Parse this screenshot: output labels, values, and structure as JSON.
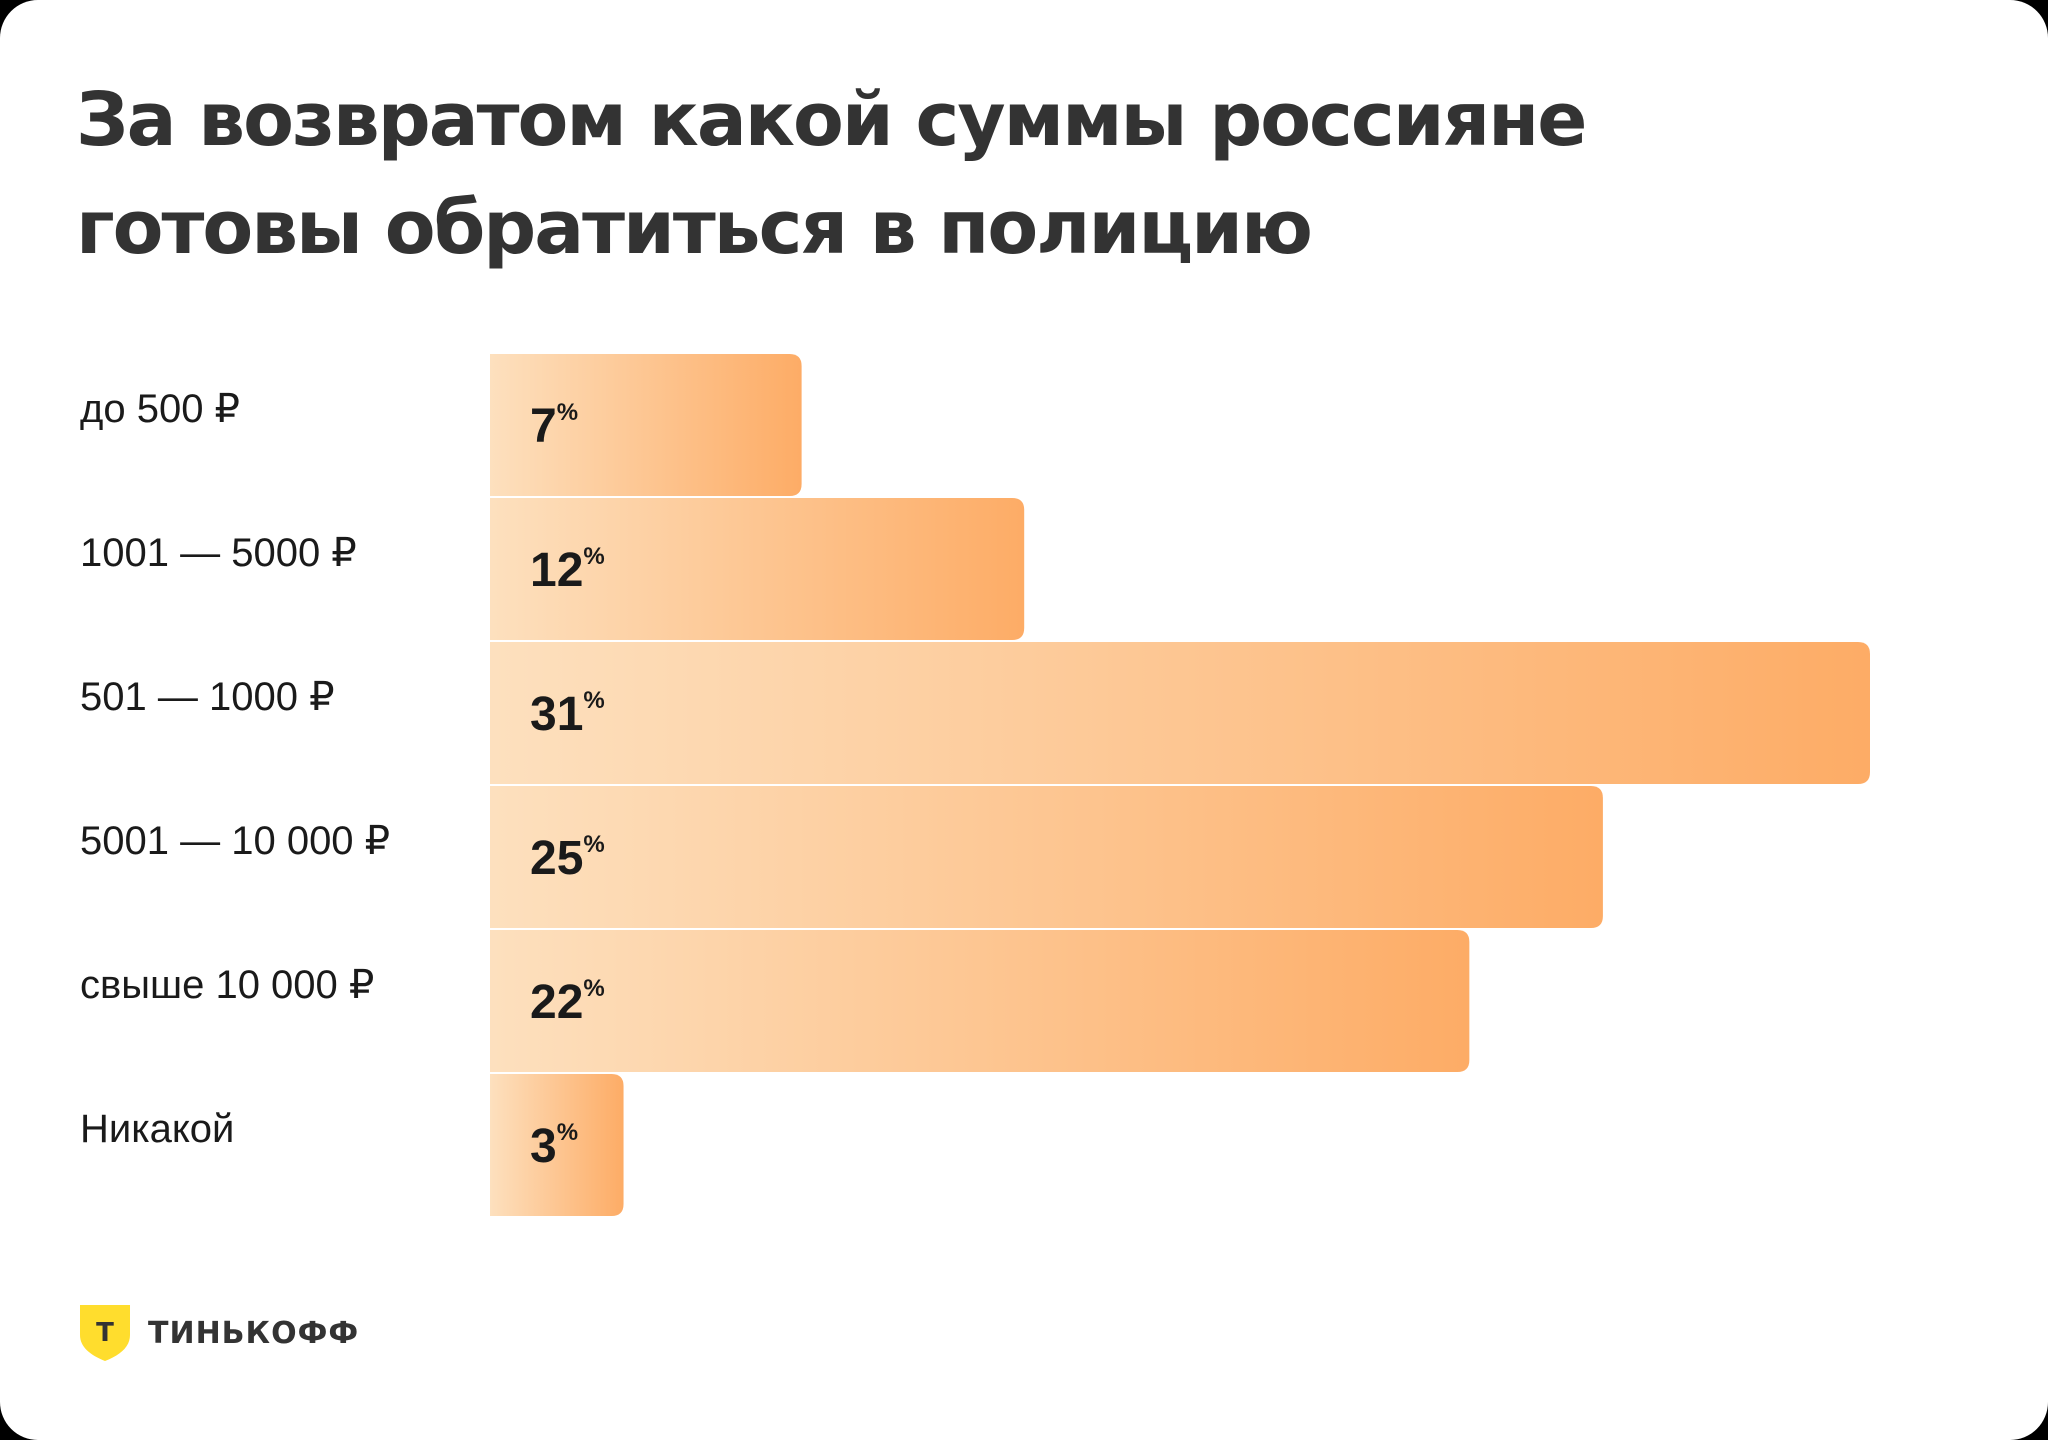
{
  "chart_data": {
    "type": "bar",
    "orientation": "horizontal",
    "title": [
      "За возвратом какой суммы россияне",
      "готовы обратиться в полицию"
    ],
    "categories": [
      "до 500 ₽",
      "1001 — 5000 ₽",
      "501 — 1000 ₽",
      "5001 — 10 000 ₽",
      "свыше 10 000 ₽",
      "Никакой"
    ],
    "values": [
      7,
      12,
      31,
      25,
      22,
      3
    ],
    "unit": "%",
    "xlim": [
      0,
      31
    ],
    "grid": false,
    "legend": "none",
    "colors": {
      "bar_start": "#fde0be",
      "bar_end": "#fdac66",
      "text": "#1a1a1a",
      "title": "#333333"
    }
  },
  "brand": {
    "name": "ТИНЬКОФФ",
    "mark": "Т",
    "colors": {
      "shield": "#ffdd2d",
      "mark": "#333333"
    }
  }
}
